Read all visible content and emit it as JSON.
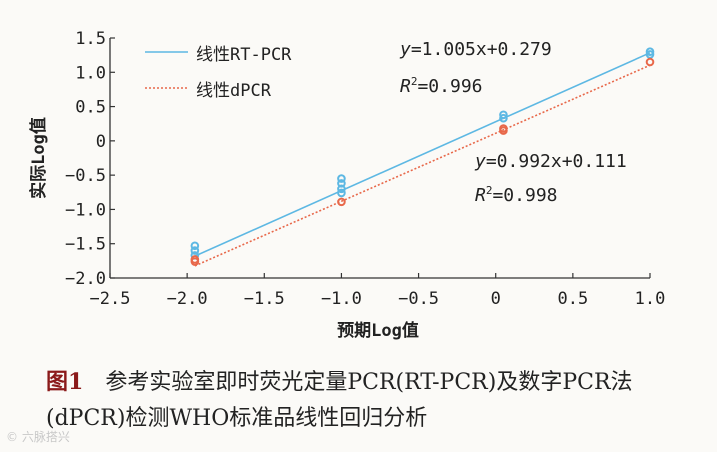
{
  "chart_data": {
    "type": "scatter",
    "title": "",
    "xlabel": "预期Log值",
    "ylabel": "实际Log值",
    "xlim": [
      -2.5,
      1.0
    ],
    "ylim": [
      -2.0,
      1.5
    ],
    "xticks": [
      -2.5,
      -2.0,
      -1.5,
      -1.0,
      -0.5,
      0,
      0.5,
      1.0
    ],
    "xtick_labels": [
      "−2.5",
      "−2.0",
      "−1.5",
      "−1.0",
      "−0.5",
      "0",
      "0.5",
      "1.0"
    ],
    "yticks": [
      -2.0,
      -1.5,
      -1.0,
      -0.5,
      0,
      0.5,
      1.0,
      1.5
    ],
    "ytick_labels": [
      "−2.0",
      "−1.5",
      "−1.0",
      "−0.5",
      "0",
      "0.5",
      "1.0",
      "1.5"
    ],
    "grid": false,
    "legend_position": "top-left",
    "series": [
      {
        "name": "线性RT-PCR",
        "color": "#5db8e3",
        "line_style": "solid",
        "fit_x": [
          -1.95,
          1.0
        ],
        "points": [
          {
            "x": -1.95,
            "y": -1.53
          },
          {
            "x": -1.95,
            "y": -1.6
          },
          {
            "x": -1.95,
            "y": -1.67
          },
          {
            "x": -1.0,
            "y": -0.55
          },
          {
            "x": -1.0,
            "y": -0.62
          },
          {
            "x": -1.0,
            "y": -0.7
          },
          {
            "x": -1.0,
            "y": -0.76
          },
          {
            "x": 0.05,
            "y": 0.38
          },
          {
            "x": 0.05,
            "y": 0.33
          },
          {
            "x": 1.0,
            "y": 1.3
          },
          {
            "x": 1.0,
            "y": 1.26
          }
        ]
      },
      {
        "name": "线性dPCR",
        "color": "#e8684a",
        "line_style": "dotted",
        "fit_x": [
          -1.95,
          1.0
        ],
        "points": [
          {
            "x": -1.95,
            "y": -1.73
          },
          {
            "x": -1.95,
            "y": -1.76
          },
          {
            "x": -1.0,
            "y": -0.89
          },
          {
            "x": 0.05,
            "y": 0.18
          },
          {
            "x": 0.05,
            "y": 0.15
          },
          {
            "x": 1.0,
            "y": 1.15
          }
        ]
      }
    ],
    "annotations": [
      {
        "id": "eq1",
        "equation_y": "y",
        "equation_rest": "=1.005x+0.279",
        "r2_label": "R",
        "r2_sup": "2",
        "r2_rest": "=0.996"
      },
      {
        "id": "eq2",
        "equation_y": "y",
        "equation_rest": "=0.992x+0.111",
        "r2_label": "R",
        "r2_sup": "2",
        "r2_rest": "=0.998"
      }
    ]
  },
  "caption": {
    "label": "图1",
    "text": "参考实验室即时荧光定量PCR(RT-PCR)及数字PCR法(dPCR)检测WHO标准品线性回归分析"
  },
  "watermark": "© 六脉搭兴"
}
